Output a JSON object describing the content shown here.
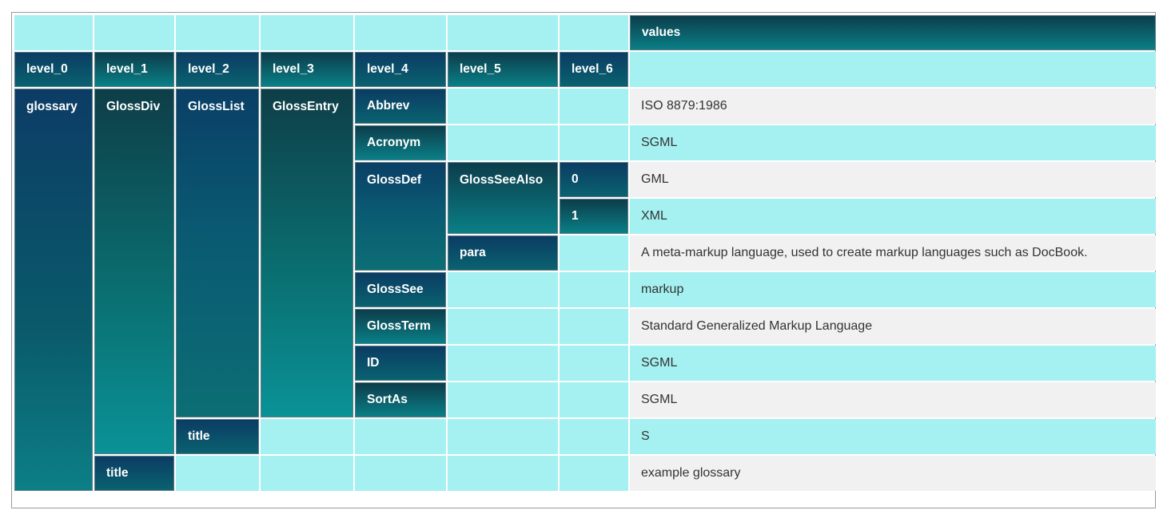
{
  "header": {
    "values": "values",
    "levels": [
      "level_0",
      "level_1",
      "level_2",
      "level_3",
      "level_4",
      "level_5",
      "level_6"
    ]
  },
  "cells": {
    "glossary": "glossary",
    "glossdiv": "GlossDiv",
    "glosslist": "GlossList",
    "glossentry": "GlossEntry",
    "abbrev": "Abbrev",
    "acronym": "Acronym",
    "glossdef": "GlossDef",
    "glossseealso": "GlossSeeAlso",
    "idx0": "0",
    "idx1": "1",
    "para": "para",
    "glosssee": "GlossSee",
    "glossterm": "GlossTerm",
    "id": "ID",
    "sortas": "SortAs",
    "title_l2": "title",
    "title_l1": "title"
  },
  "values": {
    "abbrev": "ISO 8879:1986",
    "acronym": "SGML",
    "seealso_0": "GML",
    "seealso_1": "XML",
    "para": "A meta-markup language, used to create markup languages such as DocBook.",
    "glosssee": "markup",
    "glossterm": "Standard Generalized Markup Language",
    "id": "SGML",
    "sortas": "SGML",
    "title_l2": "S",
    "title_l1": "example glossary"
  }
}
